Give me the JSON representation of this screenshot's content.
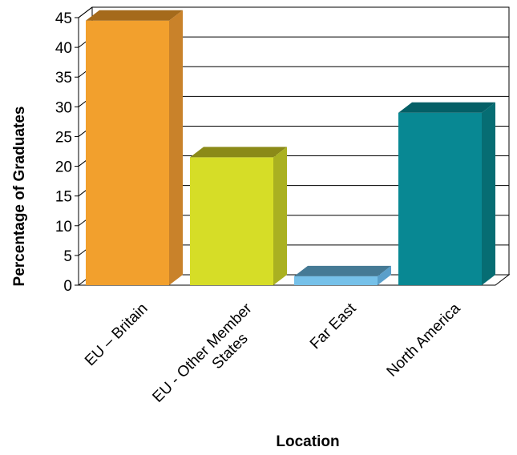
{
  "chart_data": {
    "type": "bar",
    "style": "3d",
    "categories": [
      [
        "EU – Britain"
      ],
      [
        "EU - Other Member",
        "States"
      ],
      [
        "Far East"
      ],
      [
        "North America"
      ]
    ],
    "values": [
      44.5,
      21.5,
      1.5,
      29.0
    ],
    "colors": {
      "front": [
        "#F2A02D",
        "#D6DD27",
        "#76C1E9",
        "#088893"
      ],
      "top": [
        "#A56A1B",
        "#8B8A18",
        "#457A95",
        "#045F66"
      ],
      "side": [
        "#C9822A",
        "#AAB121",
        "#5A9FCA",
        "#066D73"
      ]
    },
    "xlabel": "Location",
    "ylabel": "Percentage of Graduates",
    "ylim": [
      0,
      45
    ],
    "yticks": [
      0,
      5,
      10,
      15,
      20,
      25,
      30,
      35,
      40,
      45
    ],
    "grid": true,
    "legend": "none"
  }
}
